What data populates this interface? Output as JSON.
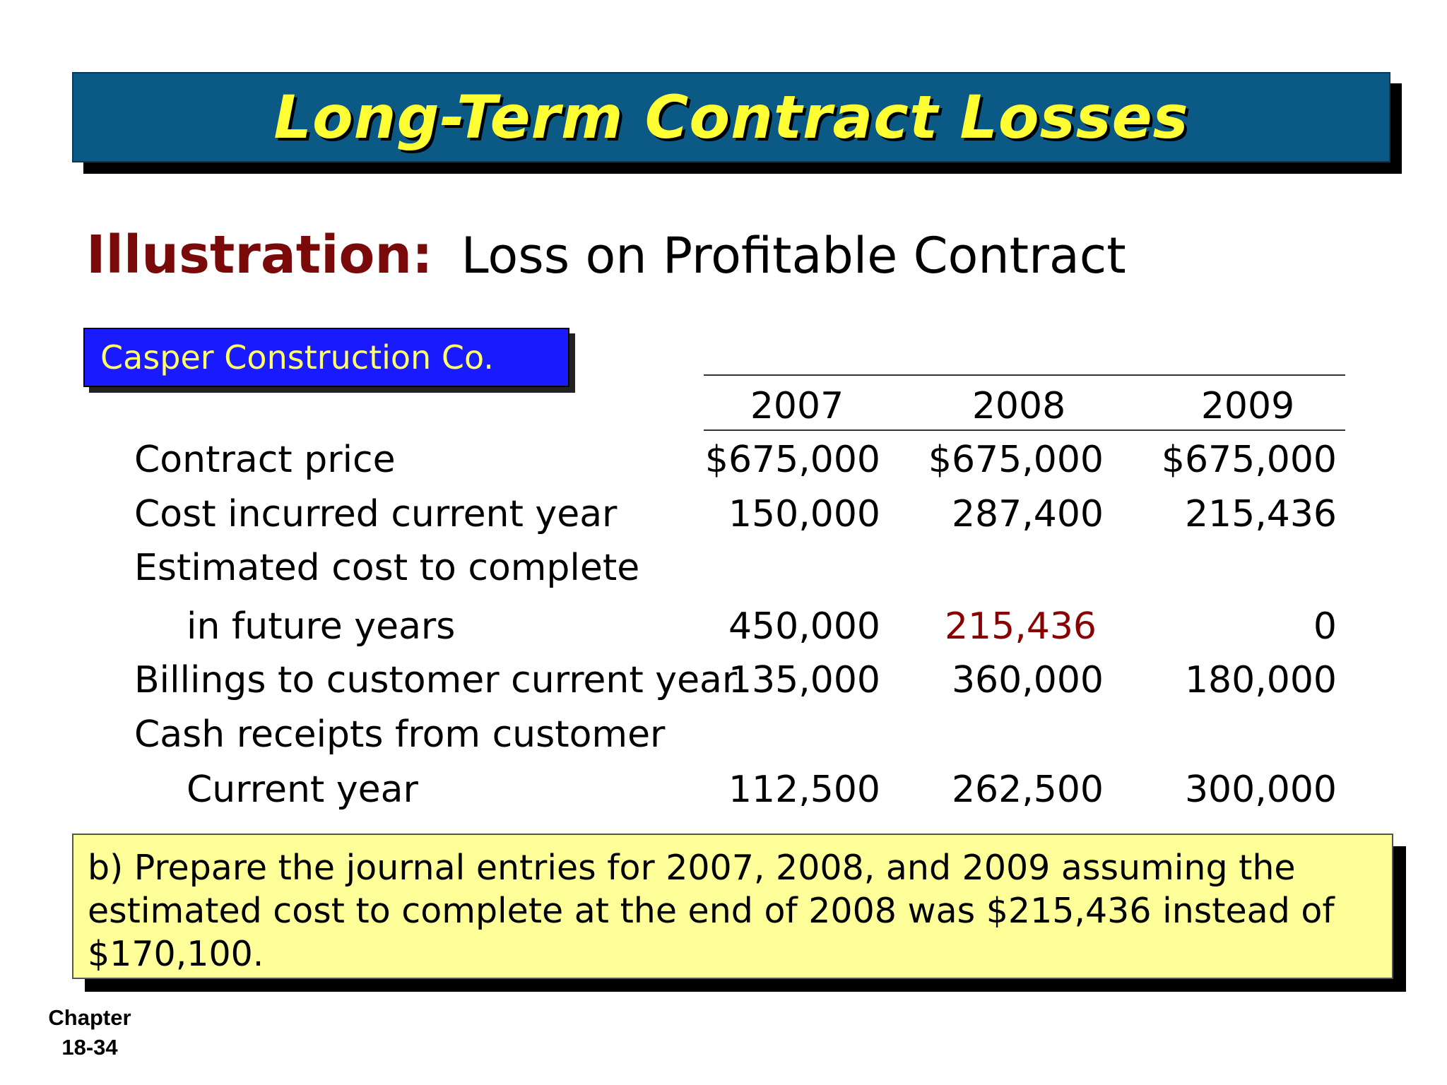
{
  "slide": {
    "title": "Long-Term Contract Losses",
    "illustration_label": "Illustration:",
    "illustration_subtitle": "Loss on Profitable Contract",
    "company": "Casper Construction Co."
  },
  "table": {
    "years": [
      "2007",
      "2008",
      "2009"
    ],
    "rows": [
      {
        "label": "Contract price",
        "values": [
          "$675,000",
          "$675,000",
          "$675,000"
        ]
      },
      {
        "label": "Cost incurred current year",
        "values": [
          "150,000",
          "287,400",
          "215,436"
        ]
      },
      {
        "label": "Estimated cost to complete",
        "values": [
          "",
          "",
          ""
        ]
      },
      {
        "label": "in future years",
        "values": [
          "450,000",
          "215,436",
          "0"
        ]
      },
      {
        "label": "Billings to customer current year",
        "values": [
          "135,000",
          "360,000",
          "180,000"
        ]
      },
      {
        "label": "Cash receipts from customer",
        "values": [
          "",
          "",
          ""
        ]
      },
      {
        "label": "Current year",
        "values": [
          "112,500",
          "262,500",
          "300,000"
        ]
      }
    ],
    "highlight_color": "#8b0000"
  },
  "instruction": {
    "text": "b)  Prepare the journal entries for 2007, 2008, and 2009 assuming the estimated cost to complete at the end of 2008 was $215,436 instead of $170,100."
  },
  "footer": {
    "chapter_label": "Chapter",
    "page_number": "18-34"
  },
  "colors": {
    "title_bar": "#0b5a86",
    "title_text": "#ffff33",
    "illustration_label": "#7a0a0a",
    "company_box": "#1a1aff",
    "company_text": "#ffff66",
    "note_box": "#ffff99"
  }
}
